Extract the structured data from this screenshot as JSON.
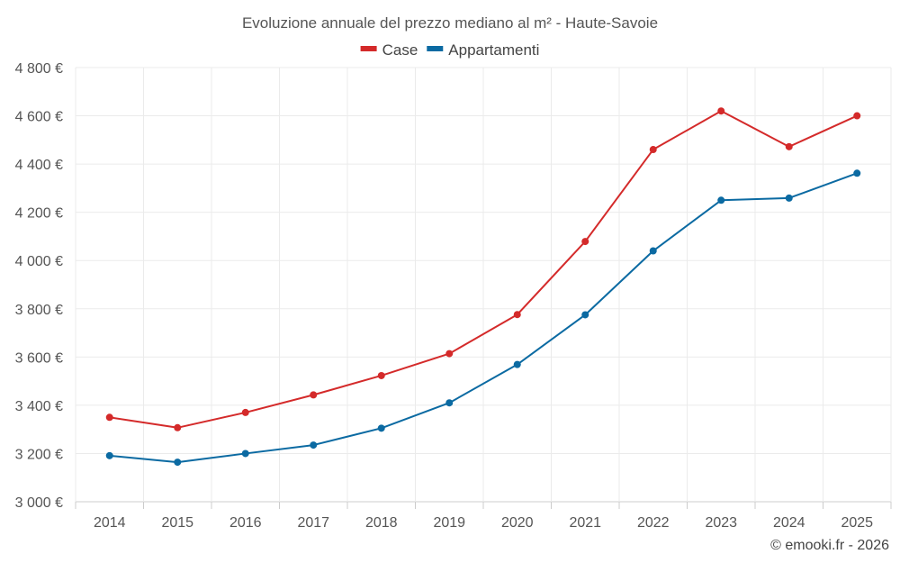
{
  "chart_data": {
    "type": "line",
    "title": "Evoluzione annuale del prezzo mediano al m² - Haute-Savoie",
    "categories": [
      "2014",
      "2015",
      "2016",
      "2017",
      "2018",
      "2019",
      "2020",
      "2021",
      "2022",
      "2023",
      "2024",
      "2025"
    ],
    "series": [
      {
        "name": "Case",
        "color": "#d42a2a",
        "values": [
          3350,
          3307,
          3370,
          3443,
          3523,
          3614,
          3776,
          4079,
          4460,
          4620,
          4472,
          4600
        ]
      },
      {
        "name": "Appartamenti",
        "color": "#0b6aa2",
        "values": [
          3191,
          3164,
          3200,
          3235,
          3305,
          3410,
          3569,
          3775,
          4040,
          4250,
          4259,
          4362
        ]
      }
    ],
    "ylim": [
      3000,
      4800
    ],
    "yticks": [
      3000,
      3200,
      3400,
      3600,
      3800,
      4000,
      4200,
      4400,
      4600,
      4800
    ],
    "ytick_labels": [
      "3 000 €",
      "3 200 €",
      "3 400 €",
      "3 600 €",
      "3 800 €",
      "4 000 €",
      "4 200 €",
      "4 400 €",
      "4 600 €",
      "4 800 €"
    ],
    "xlabel": "",
    "ylabel": "",
    "grid": true,
    "legend_position": "top-center"
  },
  "credit": "© emooki.fr - 2026",
  "colors": {
    "grid": "#ebebeb",
    "axis": "#cccccc"
  }
}
